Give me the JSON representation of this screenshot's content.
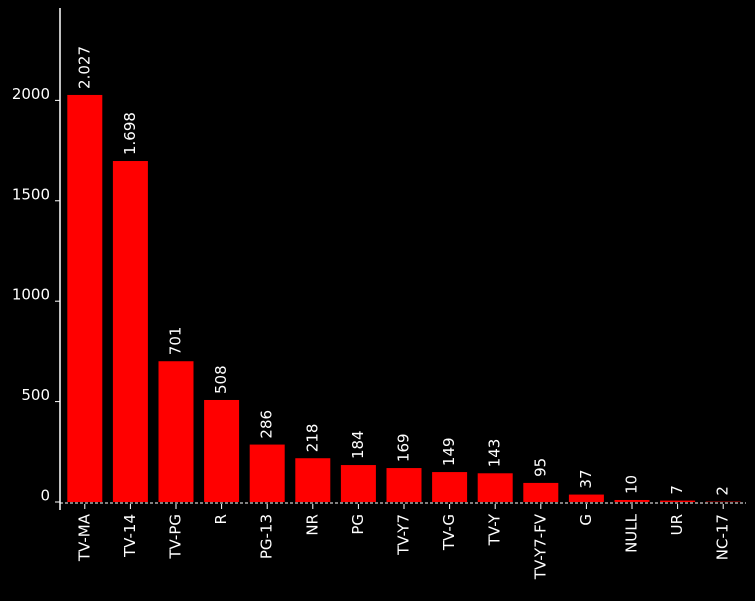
{
  "chart_data": {
    "type": "bar",
    "categories": [
      "TV-MA",
      "TV-14",
      "TV-PG",
      "R",
      "PG-13",
      "NR",
      "PG",
      "TV-Y7",
      "TV-G",
      "TV-Y",
      "TV-Y7-FV",
      "G",
      "NULL",
      "UR",
      "NC-17"
    ],
    "values": [
      2027,
      1698,
      701,
      508,
      286,
      218,
      184,
      169,
      149,
      143,
      95,
      37,
      10,
      7,
      2
    ],
    "value_labels": [
      "2.027",
      "1.698",
      "701",
      "508",
      "286",
      "218",
      "184",
      "169",
      "149",
      "143",
      "95",
      "37",
      "10",
      "7",
      "2"
    ],
    "color": "#ff0000",
    "ylim": [
      0,
      2460
    ],
    "yticks": [
      0,
      500,
      1000,
      1500,
      2000
    ]
  }
}
